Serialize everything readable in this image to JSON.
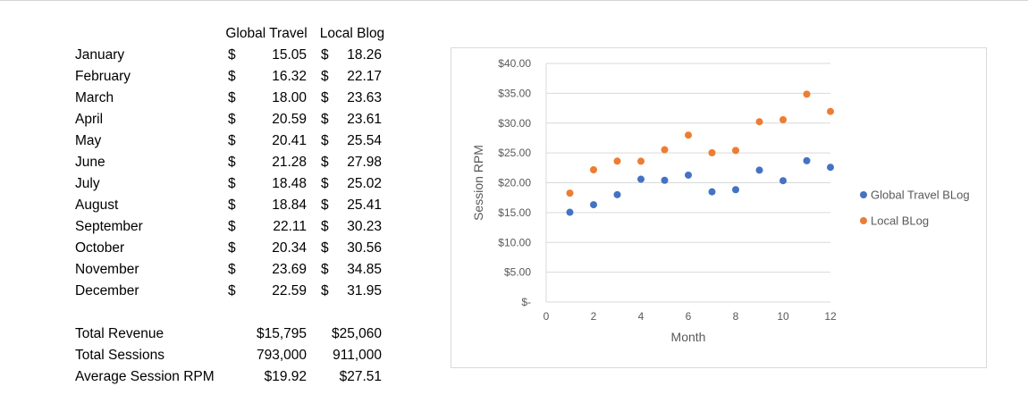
{
  "table": {
    "headers": [
      "Global Travel",
      "Local Blog"
    ],
    "currency_symbol": "$",
    "rows": [
      {
        "month": "January",
        "global": "15.05",
        "local": "18.26"
      },
      {
        "month": "February",
        "global": "16.32",
        "local": "22.17"
      },
      {
        "month": "March",
        "global": "18.00",
        "local": "23.63"
      },
      {
        "month": "April",
        "global": "20.59",
        "local": "23.61"
      },
      {
        "month": "May",
        "global": "20.41",
        "local": "25.54"
      },
      {
        "month": "June",
        "global": "21.28",
        "local": "27.98"
      },
      {
        "month": "July",
        "global": "18.48",
        "local": "25.02"
      },
      {
        "month": "August",
        "global": "18.84",
        "local": "25.41"
      },
      {
        "month": "September",
        "global": "22.11",
        "local": "30.23"
      },
      {
        "month": "October",
        "global": "20.34",
        "local": "30.56"
      },
      {
        "month": "November",
        "global": "23.69",
        "local": "34.85"
      },
      {
        "month": "December",
        "global": "22.59",
        "local": "31.95"
      }
    ],
    "summary": [
      {
        "label": "Total Revenue",
        "global": "$15,795",
        "local": "$25,060"
      },
      {
        "label": "Total Sessions",
        "global": "793,000",
        "local": "911,000"
      },
      {
        "label": "Average Session RPM",
        "global": "$19.92",
        "local": "$27.51"
      }
    ]
  },
  "chart_data": {
    "type": "scatter",
    "xlabel": "Month",
    "ylabel": "Session RPM",
    "xlim": [
      0,
      12
    ],
    "ylim": [
      0,
      40
    ],
    "x_ticks": [
      "0",
      "2",
      "4",
      "6",
      "8",
      "10",
      "12"
    ],
    "y_ticks": [
      "$-",
      "$5.00",
      "$10.00",
      "$15.00",
      "$20.00",
      "$25.00",
      "$30.00",
      "$35.00",
      "$40.00"
    ],
    "grid": true,
    "legend_position": "right",
    "series": [
      {
        "name": "Global Travel BLog",
        "color": "#4472c4",
        "x": [
          1,
          2,
          3,
          4,
          5,
          6,
          7,
          8,
          9,
          10,
          11,
          12
        ],
        "y": [
          15.05,
          16.32,
          18.0,
          20.59,
          20.41,
          21.28,
          18.48,
          18.84,
          22.11,
          20.34,
          23.69,
          22.59
        ]
      },
      {
        "name": "Local BLog",
        "color": "#ed7d31",
        "x": [
          1,
          2,
          3,
          4,
          5,
          6,
          7,
          8,
          9,
          10,
          11,
          12
        ],
        "y": [
          18.26,
          22.17,
          23.63,
          23.61,
          25.54,
          27.98,
          25.02,
          25.41,
          30.23,
          30.56,
          34.85,
          31.95
        ]
      }
    ]
  }
}
